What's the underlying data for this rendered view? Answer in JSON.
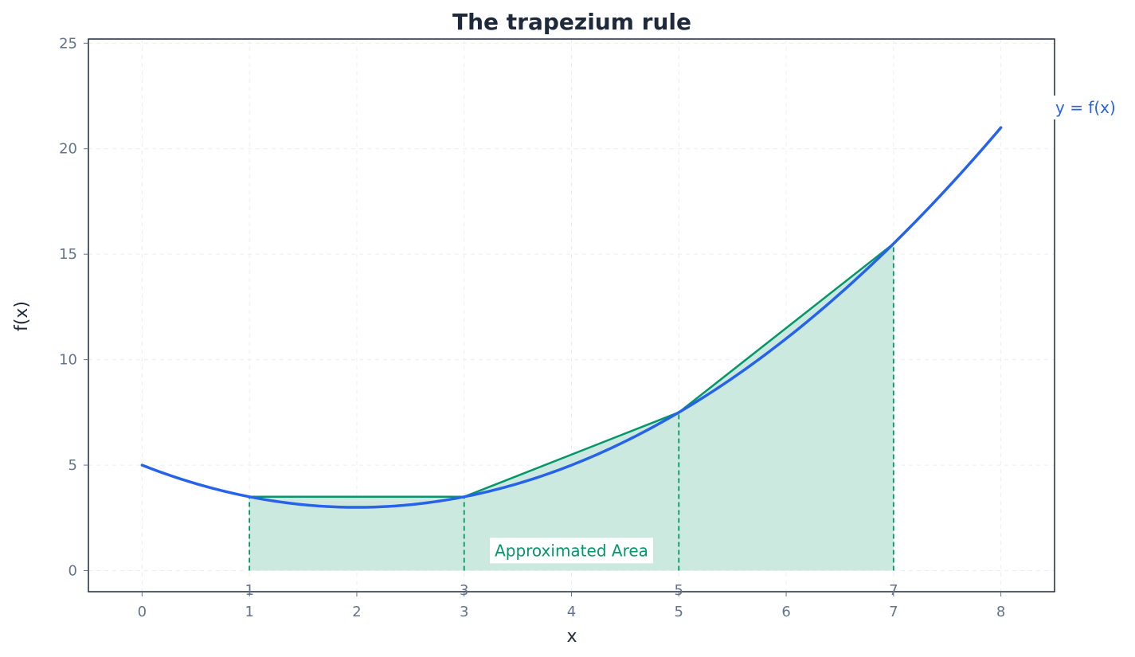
{
  "chart_data": {
    "type": "line",
    "title": "The trapezium rule",
    "xlabel": "x",
    "ylabel": "f(x)",
    "xlim": [
      -0.5,
      8.5
    ],
    "ylim": [
      -1,
      25.2
    ],
    "x_ticks": [
      0,
      1,
      2,
      3,
      4,
      5,
      6,
      7,
      8
    ],
    "y_ticks": [
      0,
      5,
      10,
      15,
      20,
      25
    ],
    "grid": true,
    "curve": {
      "label": "y = f(x)",
      "x_range": [
        0,
        8
      ],
      "formula": "0.5*x^2 - 2*x + 5",
      "color": "#2563eb"
    },
    "trapezium": {
      "nodes_x": [
        1,
        3,
        5,
        7
      ],
      "nodes_y": [
        3.5,
        3.5,
        7.5,
        15.5
      ],
      "node_labels": [
        "1",
        "3",
        "5",
        "7"
      ],
      "area_label": "Approximated Area",
      "color": "#059669",
      "fill": "#cce9df"
    }
  }
}
